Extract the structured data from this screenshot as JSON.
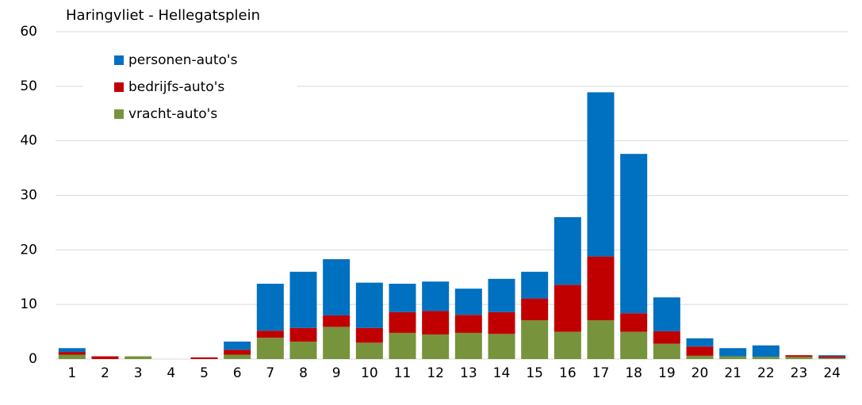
{
  "chart_data": {
    "type": "stacked-bar",
    "title": "Haringvliet - Hellegatsplein",
    "categories": [
      "1",
      "2",
      "3",
      "4",
      "5",
      "6",
      "7",
      "8",
      "9",
      "10",
      "11",
      "12",
      "13",
      "14",
      "15",
      "16",
      "17",
      "18",
      "19",
      "20",
      "21",
      "22",
      "23",
      "24"
    ],
    "series": [
      {
        "name": "personen-auto's",
        "color": "#0070c0",
        "values": [
          0.7,
          0,
          0,
          0,
          0,
          1.5,
          8.6,
          10.3,
          10.3,
          8.3,
          5.2,
          5.4,
          4.8,
          6.1,
          4.9,
          12.4,
          30.1,
          29.2,
          6.2,
          1.5,
          1.5,
          2.1,
          0,
          0.2
        ]
      },
      {
        "name": "bedrijfs-auto's",
        "color": "#c00000",
        "values": [
          0.5,
          0.5,
          0,
          0,
          0.3,
          0.9,
          1.3,
          2.5,
          2.1,
          2.7,
          3.8,
          4.3,
          3.3,
          4.0,
          4.0,
          8.6,
          11.7,
          3.4,
          2.3,
          1.7,
          0,
          0,
          0.3,
          0.3
        ]
      },
      {
        "name": "vracht-auto's",
        "color": "#77933c",
        "values": [
          0.8,
          0,
          0.5,
          0,
          0,
          0.8,
          3.9,
          3.2,
          5.9,
          3.0,
          4.8,
          4.5,
          4.8,
          4.6,
          7.1,
          5.0,
          7.1,
          5.0,
          2.8,
          0.6,
          0.5,
          0.4,
          0.4,
          0.2
        ]
      }
    ],
    "ylim": [
      0,
      60
    ],
    "yticks": [
      0,
      10,
      20,
      30,
      40,
      50,
      60
    ],
    "grid": true,
    "legend": "upper left"
  }
}
